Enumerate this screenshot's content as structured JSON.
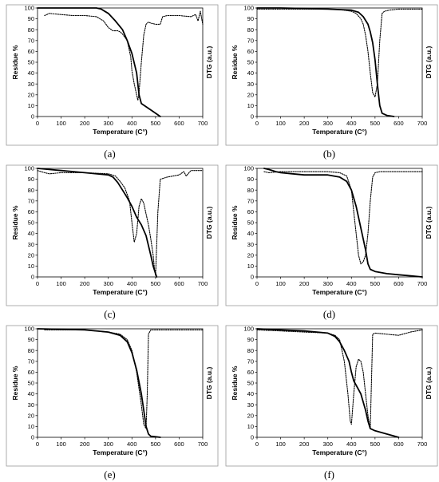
{
  "chart_data": [
    {
      "type": "line",
      "caption": "(a)",
      "xlabel": "Temperature (C°)",
      "ylabel": "Residue %",
      "y2label": "DTG (a.u.)",
      "xlim": [
        0,
        700
      ],
      "ylim": [
        0,
        100
      ],
      "xticks": [
        "0",
        "100",
        "200",
        "300",
        "400",
        "500",
        "600",
        "700"
      ],
      "yticks": [
        "0",
        "10",
        "20",
        "30",
        "40",
        "50",
        "60",
        "70",
        "80",
        "90",
        "100"
      ],
      "series": [
        {
          "style": "solid",
          "x": [
            0,
            100,
            200,
            250,
            270,
            300,
            330,
            360,
            380,
            400,
            420,
            430,
            440,
            460,
            480,
            500,
            520
          ],
          "y": [
            100,
            100,
            100,
            100,
            99,
            95,
            88,
            80,
            70,
            58,
            40,
            20,
            12,
            9,
            6,
            3,
            0
          ]
        },
        {
          "style": "dotted",
          "x": [
            30,
            50,
            100,
            150,
            200,
            250,
            280,
            300,
            320,
            340,
            350,
            360,
            380,
            395,
            400,
            410,
            420,
            425,
            430,
            440,
            450,
            460,
            470,
            480,
            500,
            520,
            530,
            550,
            600,
            650,
            670,
            680,
            690,
            700
          ],
          "y": [
            93,
            95,
            94,
            93,
            93,
            92,
            88,
            82,
            79,
            79,
            78,
            76,
            70,
            55,
            42,
            30,
            20,
            15,
            22,
            50,
            75,
            85,
            87,
            86,
            85,
            85,
            92,
            93,
            93,
            92,
            94,
            88,
            97,
            85
          ]
        }
      ]
    },
    {
      "type": "line",
      "caption": "(b)",
      "xlabel": "Temperature (C°)",
      "ylabel": "Residue %",
      "y2label": "DTG (a.u.)",
      "xlim": [
        0,
        700
      ],
      "ylim": [
        0,
        100
      ],
      "xticks": [
        "0",
        "100",
        "200",
        "300",
        "400",
        "500",
        "600",
        "700"
      ],
      "yticks": [
        "0",
        "10",
        "20",
        "30",
        "40",
        "50",
        "60",
        "70",
        "80",
        "90",
        "100"
      ],
      "series": [
        {
          "style": "solid",
          "x": [
            0,
            100,
            200,
            300,
            400,
            430,
            450,
            470,
            480,
            490,
            500,
            510,
            520,
            530,
            550,
            580
          ],
          "y": [
            100,
            100,
            99.5,
            99,
            98,
            96,
            92,
            85,
            78,
            68,
            52,
            30,
            10,
            3,
            1,
            0
          ]
        },
        {
          "style": "dotted",
          "x": [
            0,
            100,
            200,
            300,
            350,
            400,
            420,
            440,
            450,
            460,
            470,
            480,
            490,
            500,
            510,
            520,
            530,
            540,
            560,
            600,
            650,
            700
          ],
          "y": [
            99,
            99,
            99,
            99,
            98.5,
            97,
            95,
            90,
            85,
            75,
            60,
            40,
            22,
            18,
            30,
            70,
            95,
            97,
            98,
            99,
            99,
            99
          ]
        }
      ]
    },
    {
      "type": "line",
      "caption": "(c)",
      "xlabel": "Temperature (C°)",
      "ylabel": "Residue %",
      "y2label": "DTG (a.u.)",
      "xlim": [
        0,
        700
      ],
      "ylim": [
        0,
        100
      ],
      "xticks": [
        "0",
        "100",
        "200",
        "300",
        "400",
        "500",
        "600",
        "700"
      ],
      "yticks": [
        "0",
        "10",
        "20",
        "30",
        "40",
        "50",
        "60",
        "70",
        "80",
        "90",
        "100"
      ],
      "series": [
        {
          "style": "solid",
          "x": [
            0,
            50,
            100,
            200,
            300,
            320,
            340,
            360,
            380,
            400,
            420,
            440,
            460,
            480,
            490,
            500,
            505
          ],
          "y": [
            100,
            99,
            98,
            96,
            94,
            92,
            87,
            80,
            73,
            65,
            55,
            48,
            38,
            20,
            10,
            3,
            0
          ]
        },
        {
          "style": "dotted",
          "x": [
            0,
            30,
            50,
            100,
            200,
            300,
            330,
            350,
            370,
            390,
            400,
            410,
            420,
            430,
            440,
            450,
            460,
            470,
            480,
            490,
            495,
            500,
            510,
            520,
            550,
            600,
            620,
            630,
            650,
            700
          ],
          "y": [
            98,
            96,
            95,
            96,
            96,
            95,
            93,
            88,
            82,
            70,
            50,
            32,
            40,
            65,
            72,
            68,
            58,
            48,
            35,
            20,
            8,
            1,
            60,
            90,
            92,
            94,
            97,
            93,
            98,
            98
          ]
        }
      ]
    },
    {
      "type": "line",
      "caption": "(d)",
      "xlabel": "Temperature (C°)",
      "ylabel": "Residue %",
      "y2label": "DTG (a.u.)",
      "xlim": [
        0,
        700
      ],
      "ylim": [
        0,
        100
      ],
      "xticks": [
        "0",
        "100",
        "200",
        "300",
        "400",
        "500",
        "600",
        "700"
      ],
      "yticks": [
        "0",
        "10",
        "20",
        "30",
        "40",
        "50",
        "60",
        "70",
        "80",
        "90",
        "100"
      ],
      "series": [
        {
          "style": "solid",
          "x": [
            30,
            50,
            80,
            100,
            150,
            200,
            300,
            350,
            380,
            400,
            420,
            440,
            460,
            470,
            480,
            500,
            550,
            600,
            700
          ],
          "y": [
            100,
            99,
            97,
            96,
            95,
            94,
            94,
            92,
            88,
            80,
            65,
            45,
            25,
            12,
            7,
            5,
            3,
            2,
            0
          ]
        },
        {
          "style": "dotted",
          "x": [
            30,
            50,
            100,
            200,
            300,
            350,
            380,
            400,
            410,
            420,
            430,
            440,
            450,
            460,
            470,
            480,
            490,
            500,
            520,
            600,
            700
          ],
          "y": [
            97,
            96,
            97,
            97,
            97,
            96,
            93,
            80,
            60,
            40,
            20,
            12,
            14,
            20,
            40,
            70,
            92,
            96,
            97,
            97,
            97
          ]
        }
      ]
    },
    {
      "type": "line",
      "caption": "(e)",
      "xlabel": "Temperature (C°)",
      "ylabel": "Residue %",
      "y2label": "DTG (a.u.)",
      "xlim": [
        0,
        700
      ],
      "ylim": [
        0,
        100
      ],
      "xticks": [
        "0",
        "100",
        "200",
        "300",
        "400",
        "500",
        "600",
        "700"
      ],
      "yticks": [
        "0",
        "10",
        "20",
        "30",
        "40",
        "50",
        "60",
        "70",
        "80",
        "90",
        "100"
      ],
      "series": [
        {
          "style": "solid",
          "x": [
            0,
            100,
            200,
            300,
            350,
            380,
            400,
            420,
            440,
            450,
            460,
            470,
            480,
            500,
            520
          ],
          "y": [
            100,
            99.5,
            99,
            97,
            94,
            88,
            78,
            62,
            40,
            25,
            10,
            3,
            1,
            0.5,
            0
          ]
        },
        {
          "style": "dotted",
          "x": [
            30,
            100,
            200,
            300,
            350,
            380,
            400,
            420,
            440,
            450,
            460,
            465,
            470,
            480,
            500,
            600,
            700
          ],
          "y": [
            99,
            99,
            99,
            97,
            95,
            90,
            80,
            60,
            30,
            12,
            8,
            40,
            95,
            99,
            99,
            99,
            99
          ]
        }
      ]
    },
    {
      "type": "line",
      "caption": "(f)",
      "xlabel": "Temperature (C°)",
      "ylabel": "Residue %",
      "y2label": "DTG (a.u.)",
      "xlim": [
        0,
        700
      ],
      "ylim": [
        0,
        100
      ],
      "xticks": [
        "0",
        "100",
        "200",
        "300",
        "400",
        "500",
        "600",
        "700"
      ],
      "yticks": [
        "0",
        "10",
        "20",
        "30",
        "40",
        "50",
        "60",
        "70",
        "80",
        "90",
        "100"
      ],
      "series": [
        {
          "style": "solid",
          "x": [
            0,
            100,
            200,
            300,
            330,
            350,
            370,
            390,
            400,
            410,
            420,
            440,
            460,
            470,
            480,
            500,
            550,
            600
          ],
          "y": [
            100,
            99,
            98,
            96,
            93,
            88,
            80,
            70,
            60,
            52,
            48,
            40,
            25,
            15,
            8,
            6,
            3,
            0
          ]
        },
        {
          "style": "dotted",
          "x": [
            0,
            100,
            200,
            300,
            330,
            350,
            370,
            385,
            395,
            400,
            410,
            420,
            430,
            440,
            450,
            460,
            470,
            480,
            490,
            500,
            550,
            600,
            650,
            700
          ],
          "y": [
            99,
            98,
            97,
            96,
            94,
            90,
            70,
            40,
            15,
            12,
            40,
            65,
            72,
            70,
            60,
            40,
            20,
            8,
            95,
            96,
            95,
            94,
            97,
            99
          ]
        }
      ]
    }
  ]
}
